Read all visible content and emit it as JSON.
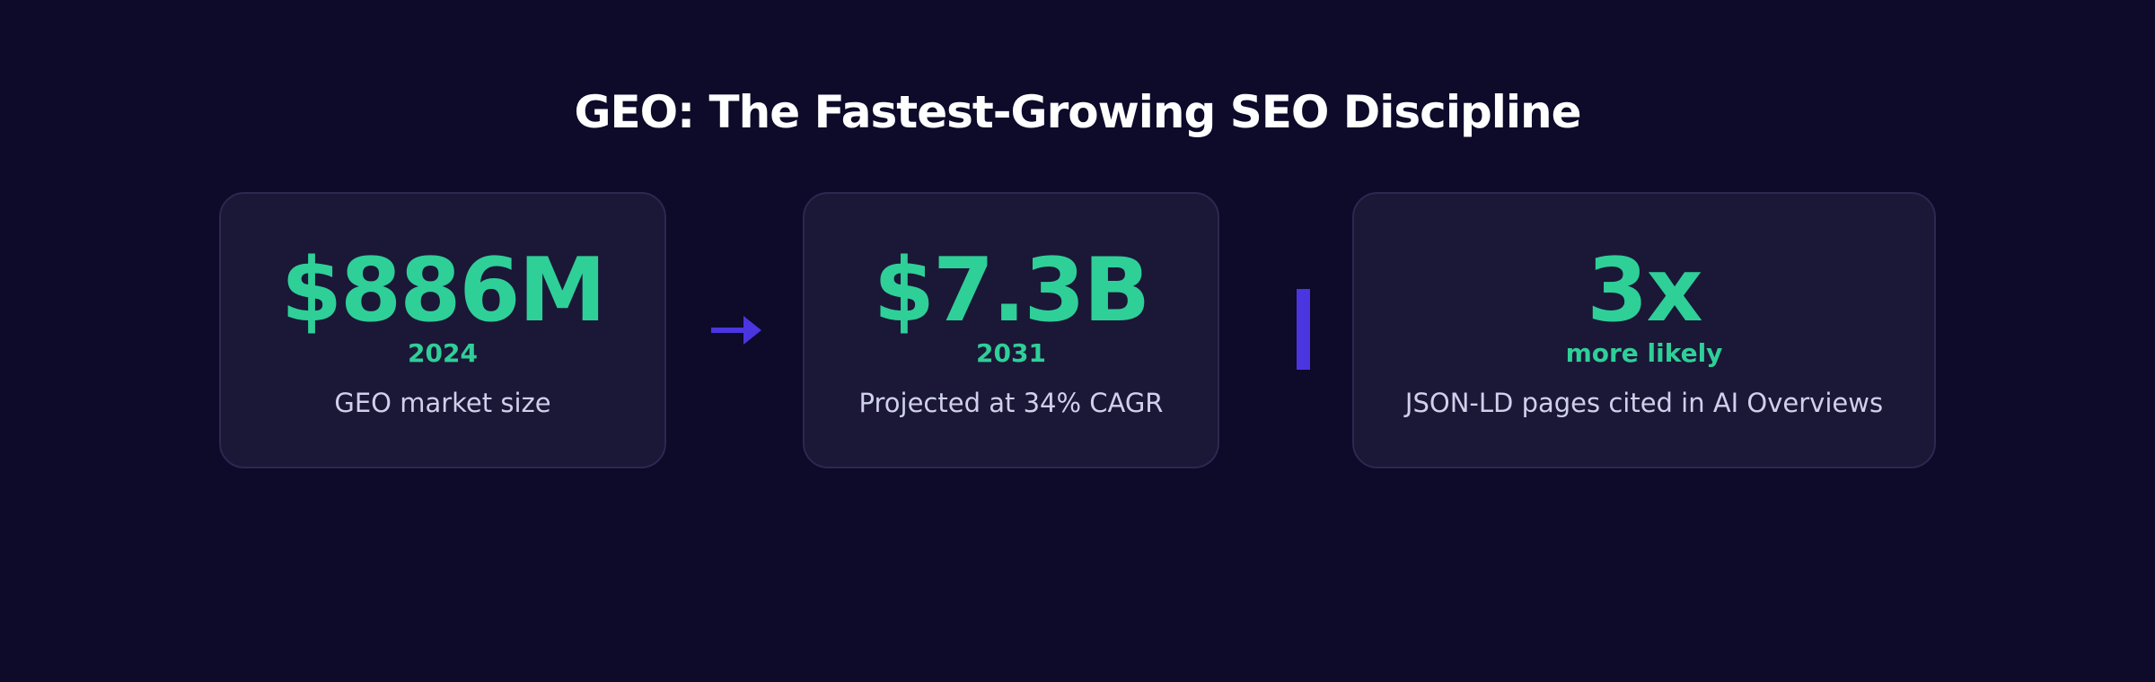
{
  "title": "GEO: The Fastest-Growing SEO Discipline",
  "cards": [
    {
      "value": "$886M",
      "sub": "2024",
      "desc": "GEO market size"
    },
    {
      "value": "$7.3B",
      "sub": "2031",
      "desc": "Projected at 34% CAGR"
    },
    {
      "value": "3x",
      "sub": "more likely",
      "desc": "JSON-LD pages cited in AI Overviews"
    }
  ],
  "colors": {
    "background": "#0d0a2a",
    "card": "#1b1737",
    "accent_green": "#2fcf98",
    "accent_purple": "#4a35e0",
    "title": "#ffffff",
    "description": "#cfd0ea"
  },
  "icons": {
    "connector": "arrow-right-icon",
    "separator": "vertical-bar-divider"
  }
}
